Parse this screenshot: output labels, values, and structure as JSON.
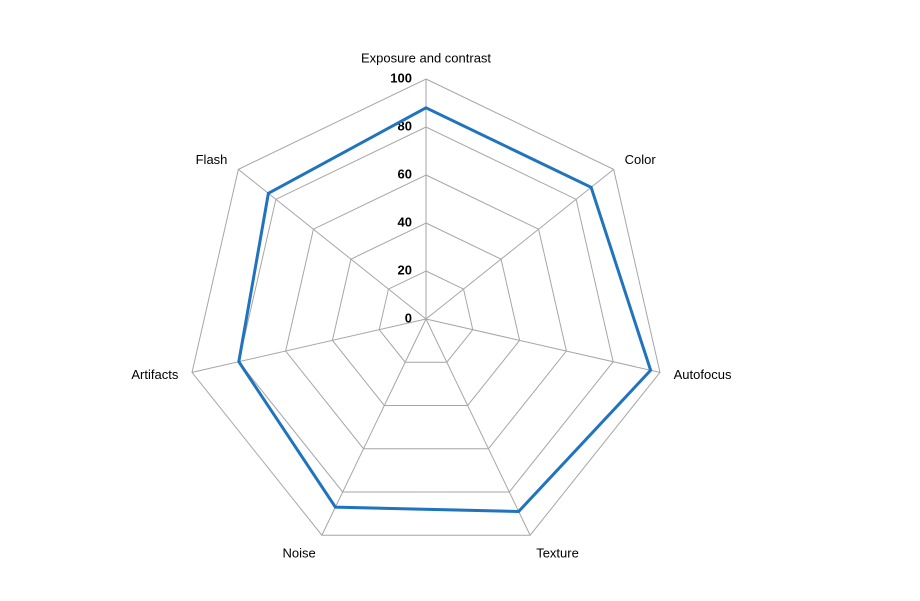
{
  "chart_data": {
    "type": "radar",
    "categories": [
      "Exposure and contrast",
      "Color",
      "Autofocus",
      "Texture",
      "Noise",
      "Artifacts",
      "Flash"
    ],
    "values": [
      88,
      88,
      96,
      89,
      87,
      80,
      84
    ],
    "color": "#1f74bd",
    "ylim": [
      0,
      100
    ],
    "yticks": [
      0,
      20,
      40,
      60,
      80,
      100
    ],
    "grid": true
  }
}
